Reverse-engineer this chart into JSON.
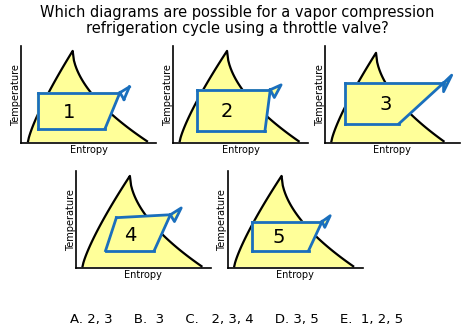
{
  "title_line1": "Which diagrams are possible for a vapor compression",
  "title_line2": "refrigeration cycle using a throttle valve?",
  "title_fontsize": 10.5,
  "answer_text": "A. 2, 3     B.  3     C.   2, 3, 4     D. 3, 5     E.  1, 2, 5",
  "answer_fontsize": 9.5,
  "bg_color": "#ffffff",
  "dome_color": "#000000",
  "fill_color": "#ffff99",
  "cycle_color": "#1a6fbd",
  "cycle_lw": 2.0,
  "dome_lw": 1.6,
  "xlabel": "Entropy",
  "ylabel": "Temperature",
  "label_fontsize": 7.0,
  "number_fontsize": 14
}
